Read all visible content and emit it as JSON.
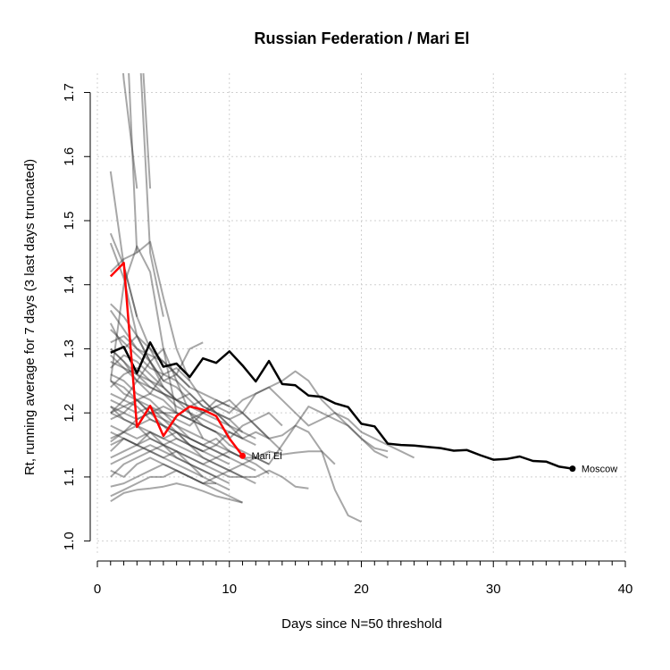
{
  "chart_data": {
    "type": "line",
    "title": "Russian Federation / Mari El",
    "xlabel": "Days since N=50 threshold",
    "ylabel": "Rt, running average for 7 days (3 last days truncated)",
    "xlim": [
      0,
      40
    ],
    "ylim": [
      0.98,
      1.73
    ],
    "x_ticks": [
      0,
      10,
      20,
      30,
      40
    ],
    "x_tick_labels": [
      "0",
      "10",
      "20",
      "30",
      "40"
    ],
    "y_ticks": [
      1.0,
      1.1,
      1.2,
      1.3,
      1.4,
      1.5,
      1.6,
      1.7
    ],
    "y_tick_labels": [
      "1.0",
      "1.1",
      "1.2",
      "1.3",
      "1.4",
      "1.5",
      "1.6",
      "1.7"
    ],
    "grid": true,
    "colors": {
      "highlight": "#ff0000",
      "reference": "#000000",
      "background_series": "#666666"
    },
    "highlight_series": {
      "name": "Mari El",
      "x": [
        1,
        2,
        3,
        4,
        5,
        6,
        7,
        8,
        9,
        10,
        11
      ],
      "y": [
        1.413,
        1.434,
        1.178,
        1.211,
        1.164,
        1.195,
        1.21,
        1.205,
        1.195,
        1.16,
        1.133
      ]
    },
    "reference_series": {
      "name": "Moscow",
      "x": [
        1,
        2,
        3,
        4,
        5,
        6,
        7,
        8,
        9,
        10,
        11,
        12,
        13,
        14,
        15,
        16,
        17,
        18,
        19,
        20,
        21,
        22,
        23,
        24,
        25,
        26,
        27,
        28,
        29,
        30,
        31,
        32,
        33,
        34,
        35,
        36
      ],
      "y": [
        1.294,
        1.303,
        1.262,
        1.31,
        1.272,
        1.277,
        1.256,
        1.285,
        1.278,
        1.296,
        1.274,
        1.249,
        1.281,
        1.245,
        1.243,
        1.227,
        1.225,
        1.215,
        1.209,
        1.183,
        1.179,
        1.152,
        1.15,
        1.149,
        1.147,
        1.145,
        1.141,
        1.142,
        1.134,
        1.127,
        1.128,
        1.132,
        1.125,
        1.124,
        1.116,
        1.113
      ]
    },
    "background_series": [
      {
        "x": [
          1,
          2,
          3
        ],
        "y": [
          1.95,
          1.72,
          1.55
        ]
      },
      {
        "x": [
          1,
          2,
          3
        ],
        "y": [
          2.1,
          1.9,
          1.45
        ]
      },
      {
        "x": [
          2,
          3,
          4
        ],
        "y": [
          2.3,
          1.9,
          1.55
        ]
      },
      {
        "x": [
          2,
          3,
          4,
          5
        ],
        "y": [
          2.2,
          1.85,
          1.45,
          1.35
        ]
      },
      {
        "x": [
          1,
          2,
          3
        ],
        "y": [
          1.577,
          1.43,
          1.35
        ]
      },
      {
        "x": [
          1,
          2,
          3,
          4,
          5
        ],
        "y": [
          1.48,
          1.43,
          1.35,
          1.3,
          1.26
        ]
      },
      {
        "x": [
          1,
          2,
          3,
          4,
          5
        ],
        "y": [
          1.465,
          1.41,
          1.32,
          1.28,
          1.24
        ]
      },
      {
        "x": [
          1,
          2,
          3,
          4,
          5,
          6,
          7
        ],
        "y": [
          1.42,
          1.44,
          1.45,
          1.467,
          1.38,
          1.3,
          1.25
        ]
      },
      {
        "x": [
          1,
          2,
          3,
          4,
          5,
          6
        ],
        "y": [
          1.25,
          1.4,
          1.46,
          1.42,
          1.3,
          1.2
        ]
      },
      {
        "x": [
          1,
          2,
          3,
          4,
          5,
          6,
          7,
          8
        ],
        "y": [
          1.34,
          1.3,
          1.32,
          1.28,
          1.25,
          1.26,
          1.3,
          1.31
        ]
      },
      {
        "x": [
          1,
          2,
          3,
          4,
          5,
          6,
          7,
          8,
          9,
          10
        ],
        "y": [
          1.3,
          1.28,
          1.25,
          1.23,
          1.26,
          1.27,
          1.25,
          1.22,
          1.2,
          1.18
        ]
      },
      {
        "x": [
          1,
          2,
          3,
          4,
          5,
          6,
          7,
          8
        ],
        "y": [
          1.2,
          1.22,
          1.25,
          1.28,
          1.3,
          1.25,
          1.2,
          1.16
        ]
      },
      {
        "x": [
          1,
          2,
          3,
          4,
          5,
          6,
          7,
          8,
          9,
          10,
          11,
          12,
          13,
          14,
          15,
          16,
          17,
          18,
          19,
          20,
          21,
          22
        ],
        "y": [
          1.25,
          1.23,
          1.22,
          1.2,
          1.2,
          1.19,
          1.18,
          1.2,
          1.21,
          1.2,
          1.22,
          1.23,
          1.24,
          1.25,
          1.265,
          1.25,
          1.22,
          1.2,
          1.18,
          1.16,
          1.14,
          1.13
        ]
      },
      {
        "x": [
          1,
          2,
          3,
          4,
          5,
          6,
          7,
          8,
          9,
          10,
          11,
          12,
          13,
          14,
          15,
          16,
          17,
          18,
          19,
          20,
          21,
          22,
          23,
          24
        ],
        "y": [
          1.21,
          1.2,
          1.19,
          1.2,
          1.21,
          1.2,
          1.19,
          1.2,
          1.22,
          1.21,
          1.2,
          1.23,
          1.24,
          1.22,
          1.2,
          1.18,
          1.19,
          1.2,
          1.19,
          1.17,
          1.16,
          1.15,
          1.14,
          1.13
        ]
      },
      {
        "x": [
          1,
          2,
          3,
          4,
          5,
          6,
          7,
          8,
          9,
          10,
          11,
          12,
          13,
          14,
          15,
          16,
          17,
          18,
          19,
          20,
          21,
          22
        ],
        "y": [
          1.18,
          1.17,
          1.16,
          1.17,
          1.15,
          1.16,
          1.15,
          1.14,
          1.15,
          1.17,
          1.16,
          1.17,
          1.16,
          1.165,
          1.18,
          1.21,
          1.2,
          1.19,
          1.18,
          1.16,
          1.145,
          1.14
        ]
      },
      {
        "x": [
          1,
          2,
          3,
          4,
          5,
          6,
          7,
          8,
          9,
          10,
          11,
          12,
          13,
          14,
          15,
          16,
          17,
          18,
          19,
          20
        ],
        "y": [
          1.15,
          1.16,
          1.15,
          1.14,
          1.13,
          1.14,
          1.13,
          1.12,
          1.13,
          1.14,
          1.13,
          1.13,
          1.12,
          1.15,
          1.18,
          1.17,
          1.14,
          1.08,
          1.04,
          1.03
        ]
      },
      {
        "x": [
          1,
          2,
          3,
          4,
          5,
          6,
          7,
          8,
          9,
          10,
          11,
          12,
          13,
          14,
          15,
          16
        ],
        "y": [
          1.2,
          1.19,
          1.18,
          1.16,
          1.15,
          1.14,
          1.13,
          1.12,
          1.11,
          1.1,
          1.1,
          1.1,
          1.11,
          1.1,
          1.085,
          1.082
        ]
      },
      {
        "x": [
          1,
          2,
          3,
          4,
          5,
          6,
          7,
          8,
          9,
          10,
          11,
          12,
          13,
          14,
          15,
          16,
          17,
          18
        ],
        "y": [
          1.12,
          1.13,
          1.14,
          1.15,
          1.14,
          1.13,
          1.12,
          1.11,
          1.1,
          1.11,
          1.12,
          1.13,
          1.14,
          1.135,
          1.138,
          1.14,
          1.14,
          1.12
        ]
      },
      {
        "x": [
          1,
          2,
          3,
          4,
          5,
          6,
          7,
          8,
          9,
          10,
          11,
          12,
          13,
          14
        ],
        "y": [
          1.28,
          1.27,
          1.25,
          1.24,
          1.23,
          1.22,
          1.21,
          1.22,
          1.2,
          1.19,
          1.2,
          1.18,
          1.16,
          1.14
        ]
      },
      {
        "x": [
          1,
          2,
          3,
          4,
          5,
          6,
          7,
          8,
          9,
          10,
          11,
          12
        ],
        "y": [
          1.3,
          1.28,
          1.26,
          1.25,
          1.24,
          1.22,
          1.23,
          1.21,
          1.2,
          1.18,
          1.17,
          1.16
        ]
      },
      {
        "x": [
          1,
          2,
          3,
          4,
          5,
          6,
          7,
          8,
          9,
          10,
          11,
          12,
          13
        ],
        "y": [
          1.26,
          1.25,
          1.23,
          1.22,
          1.2,
          1.2,
          1.19,
          1.18,
          1.17,
          1.15,
          1.14,
          1.13,
          1.12
        ]
      },
      {
        "x": [
          1,
          2,
          3,
          4,
          5,
          6,
          7,
          8,
          9,
          10,
          11
        ],
        "y": [
          1.33,
          1.31,
          1.29,
          1.27,
          1.26,
          1.25,
          1.23,
          1.21,
          1.2,
          1.19,
          1.17
        ]
      },
      {
        "x": [
          1,
          2,
          3,
          4,
          5,
          6,
          7,
          8,
          9,
          10,
          11,
          12
        ],
        "y": [
          1.23,
          1.22,
          1.21,
          1.19,
          1.18,
          1.17,
          1.16,
          1.15,
          1.14,
          1.13,
          1.12,
          1.11
        ]
      },
      {
        "x": [
          1,
          2,
          3,
          4,
          5,
          6,
          7,
          8,
          9,
          10
        ],
        "y": [
          1.17,
          1.16,
          1.15,
          1.14,
          1.13,
          1.12,
          1.11,
          1.1,
          1.09,
          1.08
        ]
      },
      {
        "x": [
          1,
          2,
          3,
          4,
          5,
          6,
          7,
          8,
          9,
          10,
          11
        ],
        "y": [
          1.07,
          1.08,
          1.09,
          1.1,
          1.1,
          1.11,
          1.1,
          1.09,
          1.08,
          1.07,
          1.06
        ]
      },
      {
        "x": [
          1,
          2,
          3,
          4,
          5,
          6,
          7,
          8,
          9,
          10,
          11
        ],
        "y": [
          1.062,
          1.075,
          1.08,
          1.082,
          1.085,
          1.09,
          1.085,
          1.078,
          1.07,
          1.065,
          1.06
        ]
      },
      {
        "x": [
          1,
          2,
          3,
          4,
          5,
          6,
          7,
          8,
          9,
          10
        ],
        "y": [
          1.085,
          1.09,
          1.1,
          1.11,
          1.12,
          1.11,
          1.1,
          1.09,
          1.1,
          1.09
        ]
      },
      {
        "x": [
          1,
          2,
          3,
          4,
          5,
          6,
          7,
          8,
          9
        ],
        "y": [
          1.1,
          1.12,
          1.13,
          1.14,
          1.15,
          1.13,
          1.12,
          1.11,
          1.1
        ]
      },
      {
        "x": [
          1,
          2,
          3,
          4,
          5,
          6,
          7,
          8,
          9,
          10,
          11,
          12
        ],
        "y": [
          1.14,
          1.16,
          1.15,
          1.17,
          1.16,
          1.15,
          1.14,
          1.13,
          1.12,
          1.11,
          1.1,
          1.09
        ]
      },
      {
        "x": [
          1,
          2,
          3,
          4,
          5,
          6,
          7,
          8,
          9,
          10,
          11,
          12,
          13
        ],
        "y": [
          1.22,
          1.21,
          1.2,
          1.21,
          1.2,
          1.18,
          1.17,
          1.16,
          1.15,
          1.14,
          1.13,
          1.12,
          1.105
        ]
      },
      {
        "x": [
          1,
          2,
          3,
          4,
          5,
          6,
          7,
          8,
          9,
          10,
          11
        ],
        "y": [
          1.36,
          1.33,
          1.3,
          1.28,
          1.25,
          1.24,
          1.22,
          1.2,
          1.19,
          1.18,
          1.16
        ]
      },
      {
        "x": [
          1,
          2,
          3,
          4,
          5,
          6,
          7,
          8,
          9,
          10
        ],
        "y": [
          1.31,
          1.32,
          1.3,
          1.29,
          1.28,
          1.26,
          1.24,
          1.23,
          1.22,
          1.21
        ]
      },
      {
        "x": [
          1,
          2,
          3,
          4,
          5,
          6,
          7,
          8,
          9
        ],
        "y": [
          1.27,
          1.29,
          1.28,
          1.26,
          1.24,
          1.22,
          1.2,
          1.18,
          1.17
        ]
      },
      {
        "x": [
          1,
          2,
          3,
          4,
          5,
          6,
          7,
          8
        ],
        "y": [
          1.19,
          1.2,
          1.22,
          1.21,
          1.19,
          1.17,
          1.15,
          1.14
        ]
      },
      {
        "x": [
          1,
          2,
          3,
          4,
          5,
          6,
          7,
          8,
          9,
          10,
          11
        ],
        "y": [
          1.21,
          1.19,
          1.18,
          1.17,
          1.16,
          1.17,
          1.16,
          1.15,
          1.16,
          1.14,
          1.13
        ]
      },
      {
        "x": [
          1,
          2,
          3,
          4,
          5,
          6,
          7,
          8,
          9,
          10,
          11,
          12,
          13
        ],
        "y": [
          1.24,
          1.26,
          1.27,
          1.25,
          1.23,
          1.22,
          1.21,
          1.2,
          1.21,
          1.22,
          1.2,
          1.18,
          1.16
        ]
      },
      {
        "x": [
          1,
          2,
          3,
          4,
          5,
          6,
          7,
          8,
          9,
          10,
          11
        ],
        "y": [
          1.16,
          1.17,
          1.19,
          1.2,
          1.18,
          1.16,
          1.15,
          1.13,
          1.12,
          1.11,
          1.1
        ]
      },
      {
        "x": [
          1,
          2,
          3,
          4,
          5,
          6,
          7,
          8
        ],
        "y": [
          1.13,
          1.14,
          1.15,
          1.16,
          1.15,
          1.14,
          1.12,
          1.1
        ]
      },
      {
        "x": [
          1,
          2,
          3,
          4,
          5,
          6,
          7,
          8,
          9,
          10,
          11,
          12
        ],
        "y": [
          1.29,
          1.27,
          1.26,
          1.24,
          1.23,
          1.21,
          1.2,
          1.19,
          1.18,
          1.17,
          1.16,
          1.15
        ]
      },
      {
        "x": [
          1,
          2,
          3,
          4,
          5,
          6,
          7,
          8,
          9,
          10
        ],
        "y": [
          1.155,
          1.17,
          1.18,
          1.19,
          1.18,
          1.17,
          1.15,
          1.14,
          1.13,
          1.12
        ]
      },
      {
        "x": [
          1,
          2,
          3,
          4,
          5,
          6,
          7,
          8,
          9,
          10,
          11,
          12,
          13,
          14
        ],
        "y": [
          1.2,
          1.21,
          1.22,
          1.23,
          1.22,
          1.2,
          1.19,
          1.18,
          1.17,
          1.16,
          1.18,
          1.19,
          1.2,
          1.18
        ]
      },
      {
        "x": [
          1,
          2,
          3,
          4,
          5,
          6,
          7,
          8,
          9
        ],
        "y": [
          1.11,
          1.1,
          1.12,
          1.13,
          1.12,
          1.11,
          1.1,
          1.09,
          1.09
        ]
      },
      {
        "x": [
          1,
          2,
          3,
          4,
          5,
          6,
          7,
          8,
          9,
          10
        ],
        "y": [
          1.25,
          1.24,
          1.22,
          1.2,
          1.19,
          1.18,
          1.16,
          1.15,
          1.14,
          1.13
        ]
      },
      {
        "x": [
          1,
          2,
          3,
          4,
          5,
          6,
          7
        ],
        "y": [
          1.37,
          1.35,
          1.32,
          1.3,
          1.28,
          1.26,
          1.24
        ]
      }
    ]
  }
}
